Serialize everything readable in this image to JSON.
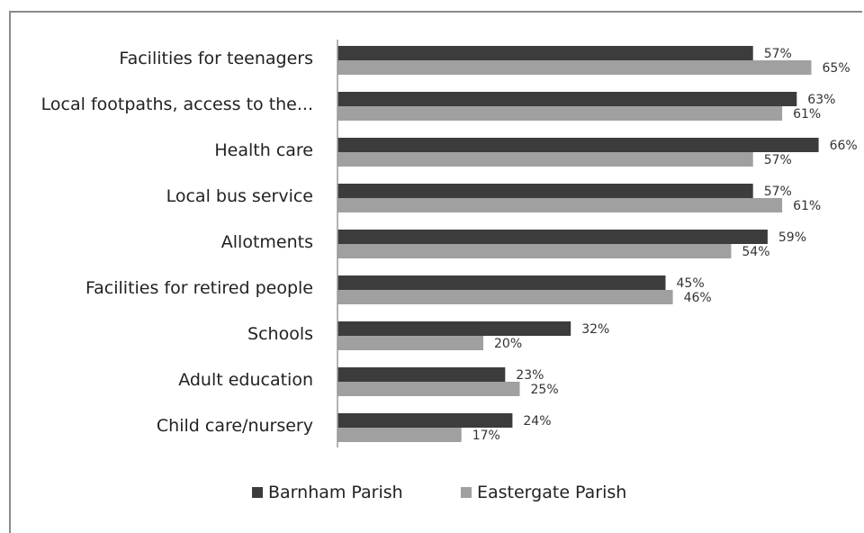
{
  "chart_data": {
    "type": "bar",
    "orientation": "horizontal",
    "categories": [
      "Facilities for teenagers",
      "Local footpaths, access to the...",
      "Health care",
      "Local bus service",
      "Allotments",
      "Facilities for retired people",
      "Schools",
      "Adult education",
      "Child care/nursery"
    ],
    "series": [
      {
        "name": "Barnham Parish",
        "color": "#3c3c3c",
        "values": [
          57,
          63,
          66,
          57,
          59,
          45,
          32,
          23,
          24
        ],
        "labels": [
          "57%",
          "63%",
          "66%",
          "57%",
          "59%",
          "45%",
          "32%",
          "23%",
          "24%"
        ]
      },
      {
        "name": "Eastergate Parish",
        "color": "#a0a0a0",
        "values": [
          65,
          61,
          57,
          61,
          54,
          46,
          20,
          25,
          17
        ],
        "labels": [
          "65%",
          "61%",
          "57%",
          "61%",
          "54%",
          "46%",
          "20%",
          "25%",
          "17%"
        ]
      }
    ],
    "xlim": [
      0,
      70
    ],
    "grid": false,
    "legend_position": "bottom"
  }
}
